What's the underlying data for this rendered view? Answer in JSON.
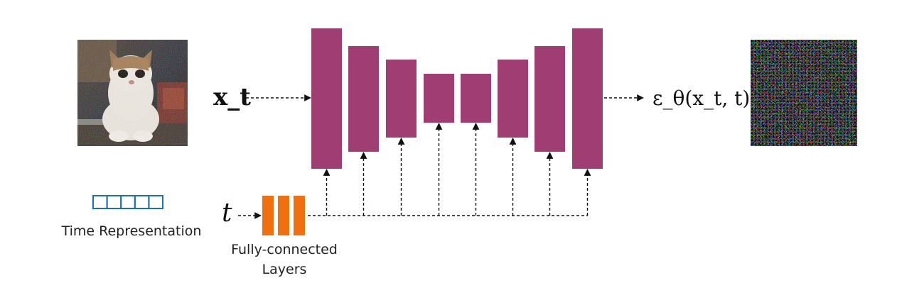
{
  "diagram": {
    "input_label": "x_t",
    "time_label": "t",
    "output_label": "ε_θ(x_t, t)",
    "time_representation_caption": "Time Representation",
    "fc_layers_caption": "Fully-connected\nLayers",
    "time_representation_cells": 5,
    "unet_block_count": 8,
    "fc_bar_count": 3,
    "colors": {
      "unet_block": "#a03d73",
      "fc_bar": "#f07010",
      "time_cells": "#1f6fb5",
      "arrows": "#111111"
    },
    "icons": {
      "input_image": "noisy-cat-photo",
      "output_image": "gaussian-noise-image"
    }
  }
}
